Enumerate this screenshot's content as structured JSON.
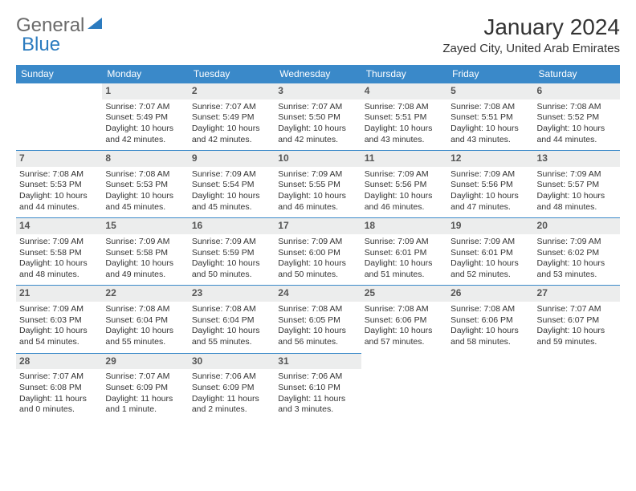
{
  "logo": {
    "part1": "General",
    "part2": "Blue"
  },
  "title": "January 2024",
  "location": "Zayed City, United Arab Emirates",
  "colors": {
    "header_bg": "#3a89c9",
    "header_fg": "#ffffff",
    "daynum_bg": "#eceded",
    "rule": "#3a89c9",
    "logo_gray": "#6a6a6a",
    "logo_blue": "#2b7bbf"
  },
  "weekdays": [
    "Sunday",
    "Monday",
    "Tuesday",
    "Wednesday",
    "Thursday",
    "Friday",
    "Saturday"
  ],
  "font": {
    "family": "Arial",
    "cell_size_pt": 10.5,
    "title_size_pt": 28
  },
  "weeks": [
    [
      null,
      {
        "n": "1",
        "sr": "Sunrise: 7:07 AM",
        "ss": "Sunset: 5:49 PM",
        "d1": "Daylight: 10 hours",
        "d2": "and 42 minutes."
      },
      {
        "n": "2",
        "sr": "Sunrise: 7:07 AM",
        "ss": "Sunset: 5:49 PM",
        "d1": "Daylight: 10 hours",
        "d2": "and 42 minutes."
      },
      {
        "n": "3",
        "sr": "Sunrise: 7:07 AM",
        "ss": "Sunset: 5:50 PM",
        "d1": "Daylight: 10 hours",
        "d2": "and 42 minutes."
      },
      {
        "n": "4",
        "sr": "Sunrise: 7:08 AM",
        "ss": "Sunset: 5:51 PM",
        "d1": "Daylight: 10 hours",
        "d2": "and 43 minutes."
      },
      {
        "n": "5",
        "sr": "Sunrise: 7:08 AM",
        "ss": "Sunset: 5:51 PM",
        "d1": "Daylight: 10 hours",
        "d2": "and 43 minutes."
      },
      {
        "n": "6",
        "sr": "Sunrise: 7:08 AM",
        "ss": "Sunset: 5:52 PM",
        "d1": "Daylight: 10 hours",
        "d2": "and 44 minutes."
      }
    ],
    [
      {
        "n": "7",
        "sr": "Sunrise: 7:08 AM",
        "ss": "Sunset: 5:53 PM",
        "d1": "Daylight: 10 hours",
        "d2": "and 44 minutes."
      },
      {
        "n": "8",
        "sr": "Sunrise: 7:08 AM",
        "ss": "Sunset: 5:53 PM",
        "d1": "Daylight: 10 hours",
        "d2": "and 45 minutes."
      },
      {
        "n": "9",
        "sr": "Sunrise: 7:09 AM",
        "ss": "Sunset: 5:54 PM",
        "d1": "Daylight: 10 hours",
        "d2": "and 45 minutes."
      },
      {
        "n": "10",
        "sr": "Sunrise: 7:09 AM",
        "ss": "Sunset: 5:55 PM",
        "d1": "Daylight: 10 hours",
        "d2": "and 46 minutes."
      },
      {
        "n": "11",
        "sr": "Sunrise: 7:09 AM",
        "ss": "Sunset: 5:56 PM",
        "d1": "Daylight: 10 hours",
        "d2": "and 46 minutes."
      },
      {
        "n": "12",
        "sr": "Sunrise: 7:09 AM",
        "ss": "Sunset: 5:56 PM",
        "d1": "Daylight: 10 hours",
        "d2": "and 47 minutes."
      },
      {
        "n": "13",
        "sr": "Sunrise: 7:09 AM",
        "ss": "Sunset: 5:57 PM",
        "d1": "Daylight: 10 hours",
        "d2": "and 48 minutes."
      }
    ],
    [
      {
        "n": "14",
        "sr": "Sunrise: 7:09 AM",
        "ss": "Sunset: 5:58 PM",
        "d1": "Daylight: 10 hours",
        "d2": "and 48 minutes."
      },
      {
        "n": "15",
        "sr": "Sunrise: 7:09 AM",
        "ss": "Sunset: 5:58 PM",
        "d1": "Daylight: 10 hours",
        "d2": "and 49 minutes."
      },
      {
        "n": "16",
        "sr": "Sunrise: 7:09 AM",
        "ss": "Sunset: 5:59 PM",
        "d1": "Daylight: 10 hours",
        "d2": "and 50 minutes."
      },
      {
        "n": "17",
        "sr": "Sunrise: 7:09 AM",
        "ss": "Sunset: 6:00 PM",
        "d1": "Daylight: 10 hours",
        "d2": "and 50 minutes."
      },
      {
        "n": "18",
        "sr": "Sunrise: 7:09 AM",
        "ss": "Sunset: 6:01 PM",
        "d1": "Daylight: 10 hours",
        "d2": "and 51 minutes."
      },
      {
        "n": "19",
        "sr": "Sunrise: 7:09 AM",
        "ss": "Sunset: 6:01 PM",
        "d1": "Daylight: 10 hours",
        "d2": "and 52 minutes."
      },
      {
        "n": "20",
        "sr": "Sunrise: 7:09 AM",
        "ss": "Sunset: 6:02 PM",
        "d1": "Daylight: 10 hours",
        "d2": "and 53 minutes."
      }
    ],
    [
      {
        "n": "21",
        "sr": "Sunrise: 7:09 AM",
        "ss": "Sunset: 6:03 PM",
        "d1": "Daylight: 10 hours",
        "d2": "and 54 minutes."
      },
      {
        "n": "22",
        "sr": "Sunrise: 7:08 AM",
        "ss": "Sunset: 6:04 PM",
        "d1": "Daylight: 10 hours",
        "d2": "and 55 minutes."
      },
      {
        "n": "23",
        "sr": "Sunrise: 7:08 AM",
        "ss": "Sunset: 6:04 PM",
        "d1": "Daylight: 10 hours",
        "d2": "and 55 minutes."
      },
      {
        "n": "24",
        "sr": "Sunrise: 7:08 AM",
        "ss": "Sunset: 6:05 PM",
        "d1": "Daylight: 10 hours",
        "d2": "and 56 minutes."
      },
      {
        "n": "25",
        "sr": "Sunrise: 7:08 AM",
        "ss": "Sunset: 6:06 PM",
        "d1": "Daylight: 10 hours",
        "d2": "and 57 minutes."
      },
      {
        "n": "26",
        "sr": "Sunrise: 7:08 AM",
        "ss": "Sunset: 6:06 PM",
        "d1": "Daylight: 10 hours",
        "d2": "and 58 minutes."
      },
      {
        "n": "27",
        "sr": "Sunrise: 7:07 AM",
        "ss": "Sunset: 6:07 PM",
        "d1": "Daylight: 10 hours",
        "d2": "and 59 minutes."
      }
    ],
    [
      {
        "n": "28",
        "sr": "Sunrise: 7:07 AM",
        "ss": "Sunset: 6:08 PM",
        "d1": "Daylight: 11 hours",
        "d2": "and 0 minutes."
      },
      {
        "n": "29",
        "sr": "Sunrise: 7:07 AM",
        "ss": "Sunset: 6:09 PM",
        "d1": "Daylight: 11 hours",
        "d2": "and 1 minute."
      },
      {
        "n": "30",
        "sr": "Sunrise: 7:06 AM",
        "ss": "Sunset: 6:09 PM",
        "d1": "Daylight: 11 hours",
        "d2": "and 2 minutes."
      },
      {
        "n": "31",
        "sr": "Sunrise: 7:06 AM",
        "ss": "Sunset: 6:10 PM",
        "d1": "Daylight: 11 hours",
        "d2": "and 3 minutes."
      },
      null,
      null,
      null
    ]
  ]
}
